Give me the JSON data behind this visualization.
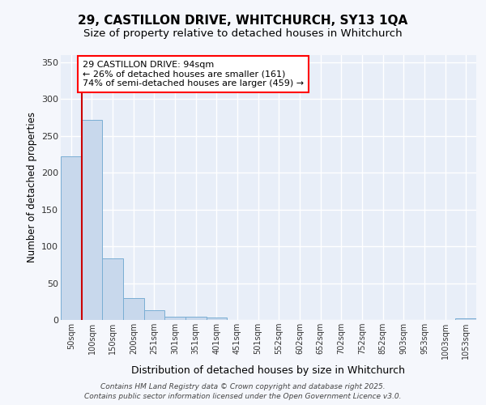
{
  "title_line1": "29, CASTILLON DRIVE, WHITCHURCH, SY13 1QA",
  "title_line2": "Size of property relative to detached houses in Whitchurch",
  "xlabel": "Distribution of detached houses by size in Whitchurch",
  "ylabel": "Number of detached properties",
  "categories": [
    "50sqm",
    "100sqm",
    "150sqm",
    "200sqm",
    "251sqm",
    "301sqm",
    "351sqm",
    "401sqm",
    "451sqm",
    "501sqm",
    "552sqm",
    "602sqm",
    "652sqm",
    "702sqm",
    "752sqm",
    "852sqm",
    "903sqm",
    "953sqm",
    "1003sqm",
    "1053sqm"
  ],
  "values": [
    222,
    272,
    84,
    30,
    13,
    4,
    4,
    3,
    0,
    0,
    0,
    0,
    0,
    0,
    0,
    0,
    0,
    0,
    0,
    2
  ],
  "bar_color": "#c8d8ec",
  "bar_edge_color": "#7aaed4",
  "ylim": [
    0,
    360
  ],
  "yticks": [
    0,
    50,
    100,
    150,
    200,
    250,
    300,
    350
  ],
  "annotation_text": "29 CASTILLON DRIVE: 94sqm\n← 26% of detached houses are smaller (161)\n74% of semi-detached houses are larger (459) →",
  "vline_color": "#cc0000",
  "footer_line1": "Contains HM Land Registry data © Crown copyright and database right 2025.",
  "footer_line2": "Contains public sector information licensed under the Open Government Licence v3.0.",
  "bg_color": "#f5f7fc",
  "plot_bg_color": "#e8eef8"
}
